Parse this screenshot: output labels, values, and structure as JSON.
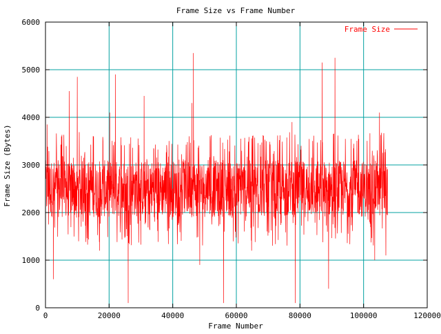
{
  "chart_data": {
    "type": "line",
    "title": "Frame Size vs Frame Number",
    "xlabel": "Frame Number",
    "ylabel": "Frame Size (Bytes)",
    "xlim": [
      0,
      120000
    ],
    "ylim": [
      0,
      6000
    ],
    "x_ticks": [
      0,
      20000,
      40000,
      60000,
      80000,
      100000,
      120000
    ],
    "y_ticks": [
      0,
      1000,
      2000,
      3000,
      4000,
      5000,
      6000
    ],
    "grid": true,
    "legend_position": "top-right",
    "colors": {
      "series": "#ff0000",
      "grid": "#00a0a0",
      "axes": "#000000",
      "background": "#ffffff"
    },
    "series": [
      {
        "name": "Frame Size",
        "color": "#ff0000",
        "points_summary": "approx. 107500 frames; values fluctuate mostly between ~1500 and ~3300 bytes around a mean of ~2500",
        "x": [
          0,
          500,
          1000,
          1500,
          2500,
          3500,
          5000,
          6500,
          7500,
          8500,
          10000,
          12000,
          14000,
          16000,
          17000,
          18000,
          19500,
          20200,
          21000,
          22000,
          24000,
          25000,
          26000,
          28000,
          30000,
          31000,
          32000,
          34000,
          36000,
          38000,
          40000,
          42000,
          43500,
          45000,
          46000,
          46500,
          47500,
          48500,
          50000,
          52000,
          54000,
          55000,
          56000,
          58000,
          60000,
          62000,
          64000,
          64800,
          65500,
          66000,
          68000,
          70000,
          72000,
          74000,
          76000,
          77500,
          78500,
          80000,
          82000,
          84000,
          86000,
          87000,
          88000,
          89000,
          90000,
          91000,
          92000,
          94000,
          96000,
          98000,
          100000,
          102000,
          103500,
          104000,
          105000,
          106000,
          107000,
          107500
        ],
        "y": [
          2400,
          3850,
          1750,
          2900,
          600,
          2400,
          3600,
          2100,
          4550,
          2300,
          4850,
          2200,
          2700,
          2100,
          1200,
          2600,
          2050,
          4100,
          3100,
          4900,
          2300,
          2600,
          100,
          2800,
          2200,
          4450,
          2400,
          3350,
          2300,
          2700,
          2500,
          2400,
          3050,
          2500,
          4300,
          5350,
          2200,
          900,
          2600,
          2400,
          2700,
          2300,
          100,
          2800,
          2400,
          2900,
          2200,
          1200,
          2900,
          2400,
          2600,
          2300,
          2500,
          2400,
          2200,
          3900,
          100,
          2700,
          2500,
          2300,
          2400,
          5150,
          2200,
          400,
          2500,
          5250,
          2500,
          2300,
          2700,
          2400,
          2300,
          2500,
          1000,
          2600,
          4100,
          2700,
          1100,
          2900
        ]
      }
    ]
  }
}
